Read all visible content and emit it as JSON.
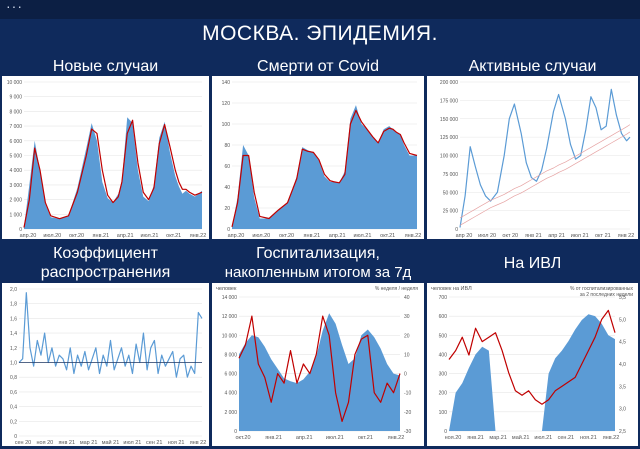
{
  "menu_dots": "···",
  "title": "МОСКВА. ЭПИДЕМИЯ.",
  "colors": {
    "fill": "#5b9bd5",
    "avg": "#c00000",
    "line": "#5b9bd5",
    "trend": "#e6a3a3",
    "ref": "#1f3864"
  },
  "panels": {
    "new_cases": {
      "title": "Новые случаи"
    },
    "deaths": {
      "title": "Смерти от Covid"
    },
    "active": {
      "title": "Активные случаи"
    },
    "r": {
      "title_line1": "Коэффициент",
      "title_line2": "распространения"
    },
    "hosp": {
      "title_line1": "Госпитализация,",
      "title_line2": "накопленным итогом за 7д"
    },
    "ivl": {
      "title": "На ИВЛ"
    }
  },
  "chart_data": [
    {
      "type": "area",
      "title": "Новые случаи",
      "ylim": [
        0,
        10000
      ],
      "ytick_labels": [
        "0",
        "1 000",
        "2 000",
        "3 000",
        "4 000",
        "5 000",
        "6 000",
        "7 000",
        "8 000",
        "9 000",
        "10 000"
      ],
      "xtick_labels": [
        "апр.20",
        "июл.20",
        "окт.20",
        "янв.21",
        "апр.21",
        "июл.21",
        "окт.21",
        "янв.22"
      ],
      "x": [
        0,
        0.03,
        0.06,
        0.09,
        0.12,
        0.15,
        0.2,
        0.25,
        0.3,
        0.35,
        0.38,
        0.41,
        0.44,
        0.47,
        0.5,
        0.53,
        0.55,
        0.58,
        0.61,
        0.64,
        0.67,
        0.7,
        0.73,
        0.76,
        0.79,
        0.82,
        0.85,
        0.87,
        0.89,
        0.91,
        0.93,
        0.96,
        1.0
      ],
      "series": [
        {
          "values": [
            150,
            3000,
            6000,
            4000,
            1700,
            800,
            700,
            900,
            2800,
            5500,
            7200,
            6000,
            3200,
            2100,
            1800,
            2400,
            3300,
            7600,
            7200,
            4000,
            2200,
            1900,
            3000,
            6200,
            7300,
            5200,
            3600,
            2900,
            2400,
            2600,
            2400,
            2200,
            2600
          ]
        },
        {
          "values": [
            100,
            2000,
            5500,
            4000,
            1800,
            900,
            700,
            900,
            2500,
            5000,
            6800,
            6500,
            4000,
            2300,
            1800,
            2200,
            3200,
            6500,
            7400,
            4500,
            2500,
            2000,
            2800,
            5800,
            7100,
            5600,
            4000,
            3200,
            2700,
            2700,
            2500,
            2300,
            2500
          ]
        }
      ]
    },
    {
      "type": "area",
      "title": "Смерти от Covid",
      "ylim": [
        0,
        140
      ],
      "ytick_labels": [
        "0",
        "20",
        "40",
        "60",
        "80",
        "100",
        "120",
        "140"
      ],
      "xtick_labels": [
        "апр.20",
        "июл.20",
        "окт.20",
        "янв.21",
        "апр.21",
        "июл.21",
        "окт.21",
        "янв.22"
      ],
      "x": [
        0,
        0.03,
        0.06,
        0.09,
        0.12,
        0.15,
        0.2,
        0.25,
        0.3,
        0.35,
        0.38,
        0.41,
        0.44,
        0.47,
        0.5,
        0.53,
        0.55,
        0.58,
        0.61,
        0.64,
        0.67,
        0.7,
        0.73,
        0.76,
        0.79,
        0.82,
        0.85,
        0.87,
        0.89,
        0.91,
        0.93,
        0.96,
        1.0
      ],
      "series": [
        {
          "values": [
            2,
            30,
            80,
            70,
            30,
            10,
            10,
            18,
            25,
            50,
            78,
            75,
            73,
            65,
            50,
            45,
            45,
            44,
            55,
            105,
            118,
            100,
            95,
            88,
            82,
            95,
            98,
            95,
            92,
            90,
            80,
            70,
            70
          ]
        },
        {
          "values": [
            2,
            25,
            70,
            70,
            35,
            12,
            10,
            18,
            25,
            48,
            76,
            74,
            73,
            66,
            52,
            46,
            45,
            44,
            52,
            100,
            113,
            102,
            95,
            88,
            82,
            93,
            96,
            95,
            92,
            90,
            82,
            72,
            70
          ]
        }
      ]
    },
    {
      "type": "line",
      "title": "Активные случаи",
      "ylim": [
        0,
        200000
      ],
      "ytick_labels": [
        "0",
        "25 000",
        "50 000",
        "75 000",
        "100 000",
        "125 000",
        "150 000",
        "175 000",
        "200 000"
      ],
      "xtick_labels": [
        "апр 20",
        "июл 20",
        "окт 20",
        "янв 21",
        "апр 21",
        "июл 21",
        "окт 21",
        "янв 22"
      ],
      "x": [
        0,
        0.03,
        0.06,
        0.09,
        0.12,
        0.15,
        0.18,
        0.22,
        0.26,
        0.29,
        0.32,
        0.36,
        0.39,
        0.42,
        0.45,
        0.48,
        0.51,
        0.55,
        0.58,
        0.62,
        0.65,
        0.68,
        0.71,
        0.74,
        0.77,
        0.8,
        0.83,
        0.86,
        0.89,
        0.92,
        0.95,
        0.98,
        1.0
      ],
      "series": [
        {
          "values": [
            2000,
            45000,
            112000,
            85000,
            60000,
            45000,
            38000,
            50000,
            100000,
            150000,
            170000,
            130000,
            90000,
            70000,
            65000,
            80000,
            110000,
            160000,
            183000,
            150000,
            115000,
            95000,
            100000,
            135000,
            180000,
            165000,
            135000,
            140000,
            190000,
            155000,
            130000,
            120000,
            125000
          ]
        },
        {
          "values": [
            5000,
            9000,
            13000,
            17000,
            21000,
            25000,
            29000,
            33000,
            37000,
            41000,
            45000,
            49000,
            53000,
            57000,
            61000,
            65000,
            69000,
            73000,
            77000,
            81000,
            85000,
            89000,
            93000,
            97000,
            101000,
            105000,
            109000,
            113000,
            117000,
            121000,
            125000,
            129000,
            132000
          ]
        },
        {
          "values": [
            15000,
            19000,
            23000,
            27000,
            31000,
            35000,
            39000,
            43000,
            47000,
            51000,
            55000,
            59000,
            63000,
            67000,
            71000,
            75000,
            79000,
            83000,
            87000,
            91000,
            95000,
            99000,
            103000,
            107000,
            111000,
            115000,
            119000,
            123000,
            127000,
            131000,
            135000,
            139000,
            142000
          ]
        }
      ]
    },
    {
      "type": "line",
      "title": "",
      "ylim": [
        0,
        2
      ],
      "ytick_labels": [
        "0",
        "0,2",
        "0,4",
        "0,6",
        "0,8",
        "1,0",
        "1,2",
        "1,4",
        "1,6",
        "1,8",
        "2,0"
      ],
      "xtick_labels": [
        "сен 20",
        "ноя 20",
        "янв 21",
        "мар 21",
        "май 21",
        "июл 21",
        "сен 21",
        "ноя 21",
        "янв 22"
      ],
      "x": [
        0,
        0.02,
        0.04,
        0.06,
        0.08,
        0.1,
        0.12,
        0.14,
        0.16,
        0.18,
        0.2,
        0.22,
        0.24,
        0.26,
        0.28,
        0.3,
        0.32,
        0.34,
        0.36,
        0.38,
        0.4,
        0.42,
        0.44,
        0.46,
        0.48,
        0.5,
        0.52,
        0.54,
        0.56,
        0.58,
        0.6,
        0.62,
        0.64,
        0.66,
        0.68,
        0.7,
        0.72,
        0.74,
        0.76,
        0.78,
        0.8,
        0.82,
        0.84,
        0.86,
        0.88,
        0.9,
        0.92,
        0.94,
        0.96,
        0.98,
        1.0
      ],
      "series": [
        {
          "values": [
            1.0,
            1.05,
            1.95,
            1.2,
            0.95,
            1.3,
            1.1,
            1.4,
            1.0,
            1.2,
            0.95,
            1.1,
            1.05,
            0.9,
            1.2,
            0.85,
            1.1,
            0.95,
            1.15,
            0.9,
            1.05,
            1.2,
            0.85,
            1.1,
            0.95,
            1.3,
            0.9,
            1.05,
            1.2,
            0.95,
            1.1,
            0.85,
            1.25,
            1.0,
            1.4,
            0.9,
            1.2,
            1.3,
            0.85,
            1.1,
            0.95,
            1.05,
            1.15,
            0.8,
            1.05,
            1.1,
            0.8,
            0.95,
            0.85,
            1.68,
            1.6
          ]
        }
      ],
      "reference_value": 1.0
    },
    {
      "type": "area",
      "title": "",
      "ylabel_left": "человек",
      "ylabel_right": "% неделя / неделя",
      "ylim": [
        0,
        14000
      ],
      "ylim_right": [
        -30,
        40
      ],
      "ytick_labels": [
        "0",
        "2 000",
        "4 000",
        "6 000",
        "8 000",
        "10 000",
        "12 000",
        "14 000"
      ],
      "ytick_labels_right": [
        "-30",
        "-20",
        "-10",
        "0",
        "10",
        "20",
        "30",
        "40"
      ],
      "xtick_labels": [
        "окт.20",
        "янв.21",
        "апр.21",
        "июл.21",
        "окт.21",
        "янв.22"
      ],
      "x": [
        0,
        0.04,
        0.08,
        0.12,
        0.16,
        0.2,
        0.24,
        0.28,
        0.32,
        0.36,
        0.4,
        0.44,
        0.48,
        0.52,
        0.56,
        0.6,
        0.64,
        0.68,
        0.72,
        0.76,
        0.8,
        0.84,
        0.88,
        0.92,
        0.96,
        1.0
      ],
      "series": [
        {
          "values": [
            8000,
            9200,
            10000,
            9800,
            8800,
            7500,
            6500,
            5500,
            5200,
            5000,
            5400,
            6200,
            7800,
            10500,
            12300,
            11200,
            9000,
            7000,
            7600,
            10000,
            10600,
            9800,
            8600,
            7000,
            6000,
            5800
          ]
        },
        {
          "values": [
            8,
            15,
            30,
            5,
            -2,
            -15,
            0,
            -5,
            12,
            -5,
            5,
            0,
            10,
            30,
            20,
            -10,
            -25,
            -15,
            10,
            18,
            20,
            -10,
            -15,
            -5,
            -10,
            0
          ]
        }
      ]
    },
    {
      "type": "area",
      "title": "",
      "ylabel_left": "человек на ИВЛ",
      "ylabel_right": "% от госпитализированных за 2 последних недели",
      "ylim": [
        0,
        700
      ],
      "ylim_right": [
        2.5,
        5.5
      ],
      "ytick_labels": [
        "0",
        "100",
        "200",
        "300",
        "400",
        "500",
        "600",
        "700"
      ],
      "ytick_labels_right": [
        "2,5",
        "3,0",
        "3,5",
        "4,0",
        "4,5",
        "5,0",
        "5,5"
      ],
      "xtick_labels": [
        "ноя.20",
        "янв.21",
        "мар.21",
        "май.21",
        "июл.21",
        "сен.21",
        "ноя.21",
        "янв.22"
      ],
      "x": [
        0,
        0.04,
        0.08,
        0.12,
        0.16,
        0.2,
        0.24,
        0.28,
        0.32,
        0.36,
        0.4,
        0.44,
        0.48,
        0.52,
        0.56,
        0.6,
        0.64,
        0.68,
        0.72,
        0.76,
        0.8,
        0.84,
        0.88,
        0.92,
        0.96,
        1.0
      ],
      "series": [
        {
          "values": [
            0,
            200,
            250,
            330,
            400,
            440,
            420,
            0,
            0,
            0,
            0,
            0,
            0,
            0,
            0,
            300,
            380,
            420,
            470,
            530,
            580,
            610,
            600,
            560,
            500,
            480
          ]
        },
        {
          "values": [
            4.1,
            4.3,
            4.6,
            4.2,
            4.8,
            4.5,
            4.6,
            4.7,
            4.3,
            3.8,
            3.4,
            3.3,
            3.4,
            3.2,
            3.1,
            3.2,
            3.4,
            3.5,
            3.6,
            3.7,
            4.0,
            4.3,
            4.6,
            5.0,
            5.2,
            4.7
          ]
        }
      ]
    }
  ]
}
